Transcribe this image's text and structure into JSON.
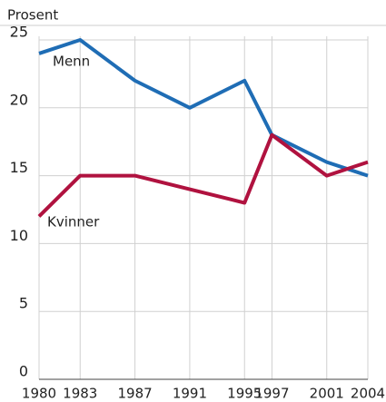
{
  "chart_data": {
    "type": "line",
    "y_axis_label": "Prosent",
    "x": [
      1980,
      1983,
      1987,
      1991,
      1995,
      1997,
      2001,
      2004
    ],
    "xlim": [
      1980,
      2004
    ],
    "xticks": [
      1980,
      1983,
      1987,
      1991,
      1995,
      1997,
      2001,
      2004
    ],
    "ylim": [
      0,
      25
    ],
    "yticks": [
      0,
      5,
      10,
      15,
      20,
      25
    ],
    "grid": true,
    "series": [
      {
        "name": "Menn",
        "color": "#1f6db5",
        "values": [
          24,
          25,
          22,
          20,
          22,
          18,
          16,
          15
        ]
      },
      {
        "name": "Kvinner",
        "color": "#b0123f",
        "values": [
          12,
          15,
          15,
          14,
          13,
          18,
          15,
          16
        ]
      }
    ]
  }
}
